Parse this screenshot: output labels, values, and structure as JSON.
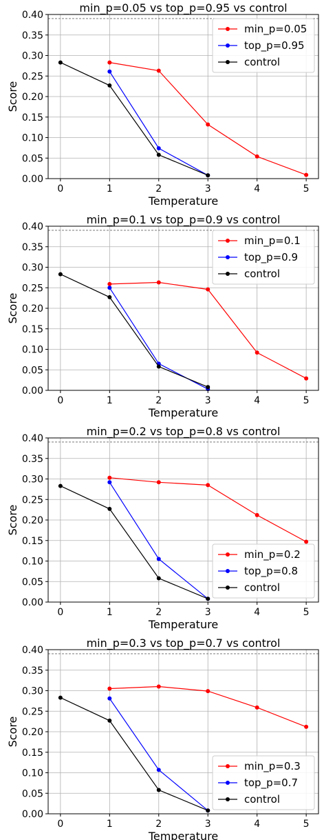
{
  "chart_data": [
    {
      "type": "line",
      "title": "min_p=0.05 vs top_p=0.95 vs control",
      "xlabel": "Temperature",
      "ylabel": "Score",
      "xlim": [
        -0.25,
        5.25
      ],
      "ylim": [
        0,
        0.4
      ],
      "xticks": [
        "0",
        "1",
        "2",
        "3",
        "4",
        "5"
      ],
      "yticks": [
        "0.00",
        "0.05",
        "0.10",
        "0.15",
        "0.20",
        "0.25",
        "0.30",
        "0.35",
        "0.40"
      ],
      "grid": true,
      "legend_position": "top-right",
      "reference_line": {
        "y": 0.39,
        "style": "dashed"
      },
      "series": [
        {
          "name": "min_p=0.05",
          "color": "#ff0000",
          "x": [
            1,
            2,
            3,
            4,
            5
          ],
          "y": [
            0.283,
            0.263,
            0.132,
            0.054,
            0.009
          ]
        },
        {
          "name": "top_p=0.95",
          "color": "#0000ff",
          "x": [
            1,
            2,
            3
          ],
          "y": [
            0.261,
            0.074,
            0.008
          ]
        },
        {
          "name": "control",
          "color": "#000000",
          "x": [
            0,
            1,
            2,
            3
          ],
          "y": [
            0.283,
            0.227,
            0.058,
            0.008
          ]
        }
      ]
    },
    {
      "type": "line",
      "title": "min_p=0.1 vs top_p=0.9 vs control",
      "xlabel": "Temperature",
      "ylabel": "Score",
      "xlim": [
        -0.25,
        5.25
      ],
      "ylim": [
        0,
        0.4
      ],
      "xticks": [
        "0",
        "1",
        "2",
        "3",
        "4",
        "5"
      ],
      "yticks": [
        "0.00",
        "0.05",
        "0.10",
        "0.15",
        "0.20",
        "0.25",
        "0.30",
        "0.35",
        "0.40"
      ],
      "grid": true,
      "legend_position": "top-right",
      "reference_line": {
        "y": 0.39,
        "style": "dashed"
      },
      "series": [
        {
          "name": "min_p=0.1",
          "color": "#ff0000",
          "x": [
            1,
            2,
            3,
            4,
            5
          ],
          "y": [
            0.259,
            0.263,
            0.246,
            0.092,
            0.029
          ]
        },
        {
          "name": "top_p=0.9",
          "color": "#0000ff",
          "x": [
            1,
            2,
            3
          ],
          "y": [
            0.25,
            0.065,
            0.003
          ]
        },
        {
          "name": "control",
          "color": "#000000",
          "x": [
            0,
            1,
            2,
            3
          ],
          "y": [
            0.283,
            0.227,
            0.058,
            0.008
          ]
        }
      ]
    },
    {
      "type": "line",
      "title": "min_p=0.2 vs top_p=0.8 vs control",
      "xlabel": "Temperature",
      "ylabel": "Score",
      "xlim": [
        -0.25,
        5.25
      ],
      "ylim": [
        0,
        0.4
      ],
      "xticks": [
        "0",
        "1",
        "2",
        "3",
        "4",
        "5"
      ],
      "yticks": [
        "0.00",
        "0.05",
        "0.10",
        "0.15",
        "0.20",
        "0.25",
        "0.30",
        "0.35",
        "0.40"
      ],
      "grid": true,
      "legend_position": "bottom-right",
      "reference_line": {
        "y": 0.39,
        "style": "dashed"
      },
      "series": [
        {
          "name": "min_p=0.2",
          "color": "#ff0000",
          "x": [
            1,
            2,
            3,
            4,
            5
          ],
          "y": [
            0.303,
            0.292,
            0.285,
            0.212,
            0.147
          ]
        },
        {
          "name": "top_p=0.8",
          "color": "#0000ff",
          "x": [
            1,
            2,
            3
          ],
          "y": [
            0.292,
            0.105,
            0.008
          ]
        },
        {
          "name": "control",
          "color": "#000000",
          "x": [
            0,
            1,
            2,
            3
          ],
          "y": [
            0.283,
            0.227,
            0.058,
            0.008
          ]
        }
      ]
    },
    {
      "type": "line",
      "title": "min_p=0.3 vs top_p=0.7 vs control",
      "xlabel": "Temperature",
      "ylabel": "Score",
      "xlim": [
        -0.25,
        5.25
      ],
      "ylim": [
        0,
        0.4
      ],
      "xticks": [
        "0",
        "1",
        "2",
        "3",
        "4",
        "5"
      ],
      "yticks": [
        "0.00",
        "0.05",
        "0.10",
        "0.15",
        "0.20",
        "0.25",
        "0.30",
        "0.35",
        "0.40"
      ],
      "grid": true,
      "legend_position": "bottom-right",
      "reference_line": {
        "y": 0.39,
        "style": "dashed"
      },
      "series": [
        {
          "name": "min_p=0.3",
          "color": "#ff0000",
          "x": [
            1,
            2,
            3,
            4,
            5
          ],
          "y": [
            0.305,
            0.31,
            0.299,
            0.259,
            0.212
          ]
        },
        {
          "name": "top_p=0.7",
          "color": "#0000ff",
          "x": [
            1,
            2,
            3
          ],
          "y": [
            0.281,
            0.107,
            0.008
          ]
        },
        {
          "name": "control",
          "color": "#000000",
          "x": [
            0,
            1,
            2,
            3
          ],
          "y": [
            0.283,
            0.227,
            0.058,
            0.008
          ]
        }
      ]
    }
  ]
}
